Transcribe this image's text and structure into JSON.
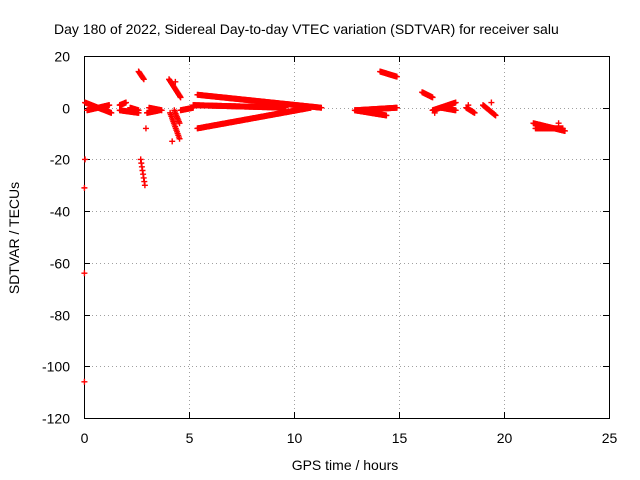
{
  "chart_data": {
    "type": "scatter",
    "title": "Day 180 of 2022, Sidereal Day-to-day VTEC variation (SDTVAR) for receiver salu",
    "xlabel": "GPS time / hours",
    "ylabel": "SDTVAR / TECUs",
    "xlim": [
      0,
      25
    ],
    "ylim": [
      -120,
      20
    ],
    "xticks": [
      0,
      5,
      10,
      15,
      20,
      25
    ],
    "yticks": [
      20,
      0,
      -20,
      -40,
      -60,
      -80,
      -100,
      -120
    ],
    "xtick_labels": [
      "0",
      "5",
      "10",
      "15",
      "20",
      "25"
    ],
    "ytick_labels": [
      "20",
      "0",
      "-20",
      "-40",
      "-60",
      "-80",
      "-100",
      "-120"
    ],
    "grid": true,
    "marker": "+",
    "color": "#ff0000",
    "series": [
      {
        "name": "SDTVAR",
        "segments": [
          {
            "t0": 0.05,
            "t1": 1.3,
            "v": [
              2,
              -2
            ]
          },
          {
            "t0": 0.15,
            "t1": 1.2,
            "v": [
              -1,
              1
            ]
          },
          {
            "t0": 1.7,
            "t1": 2.0,
            "v": [
              1,
              2
            ]
          },
          {
            "t0": 1.7,
            "t1": 2.6,
            "v": [
              -1,
              -2
            ]
          },
          {
            "t0": 2.2,
            "t1": 2.6,
            "v": [
              0,
              -1
            ]
          },
          {
            "t0": 3.1,
            "t1": 3.7,
            "v": [
              0,
              -1
            ]
          },
          {
            "t0": 3.0,
            "t1": 3.6,
            "v": [
              -2,
              -1
            ]
          },
          {
            "t0": 2.6,
            "t1": 2.85,
            "v": [
              14,
              11
            ]
          },
          {
            "t0": 2.7,
            "t1": 2.9,
            "v": [
              -20,
              -30
            ]
          },
          {
            "t0": 4.05,
            "t1": 4.6,
            "v": [
              11,
              4
            ]
          },
          {
            "t0": 4.1,
            "t1": 4.55,
            "v": [
              -2,
              -12
            ]
          },
          {
            "t0": 4.3,
            "t1": 4.55,
            "v": [
              -1,
              -6
            ]
          },
          {
            "t0": 4.6,
            "t1": 5.2,
            "v": [
              -1,
              0
            ]
          },
          {
            "t0": 5.4,
            "t1": 11.3,
            "v": [
              5,
              0
            ]
          },
          {
            "t0": 5.2,
            "t1": 9.6,
            "v": [
              1,
              0
            ]
          },
          {
            "t0": 5.4,
            "t1": 10.8,
            "v": [
              -8,
              0
            ]
          },
          {
            "t0": 12.9,
            "t1": 14.9,
            "v": [
              -1,
              0
            ]
          },
          {
            "t0": 12.9,
            "t1": 14.4,
            "v": [
              -1,
              -3
            ]
          },
          {
            "t0": 14.1,
            "t1": 14.9,
            "v": [
              14,
              12
            ]
          },
          {
            "t0": 16.1,
            "t1": 16.6,
            "v": [
              6,
              4
            ]
          },
          {
            "t0": 16.6,
            "t1": 17.7,
            "v": [
              -1,
              2
            ]
          },
          {
            "t0": 17.0,
            "t1": 17.7,
            "v": [
              0,
              -1
            ]
          },
          {
            "t0": 18.2,
            "t1": 18.6,
            "v": [
              0,
              -2
            ]
          },
          {
            "t0": 19.0,
            "t1": 19.6,
            "v": [
              1,
              -3
            ]
          },
          {
            "t0": 21.4,
            "t1": 22.9,
            "v": [
              -6,
              -9
            ]
          },
          {
            "t0": 21.5,
            "t1": 22.8,
            "v": [
              -8,
              -8
            ]
          }
        ],
        "points": [
          {
            "x": 0.05,
            "y": -20
          },
          {
            "x": 0.02,
            "y": -31
          },
          {
            "x": 0.02,
            "y": -64
          },
          {
            "x": 0.02,
            "y": -106
          },
          {
            "x": 2.95,
            "y": -8
          },
          {
            "x": 4.2,
            "y": -13
          },
          {
            "x": 4.35,
            "y": 10
          },
          {
            "x": 18.3,
            "y": 1
          },
          {
            "x": 19.4,
            "y": 2
          },
          {
            "x": 16.7,
            "y": -2
          },
          {
            "x": 22.6,
            "y": -6
          }
        ]
      }
    ]
  }
}
